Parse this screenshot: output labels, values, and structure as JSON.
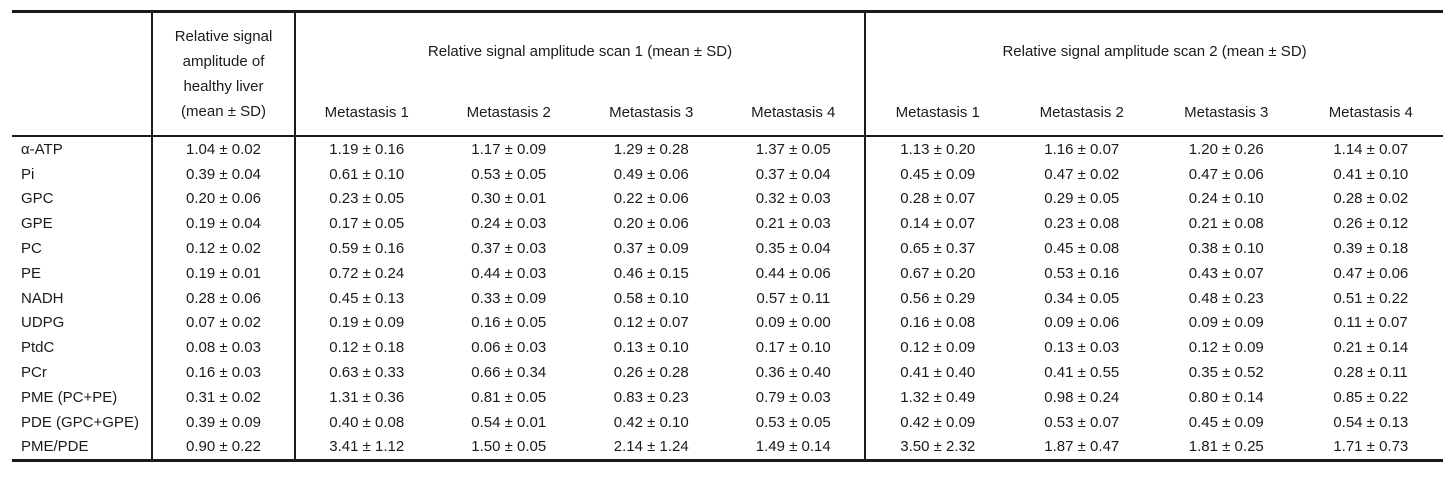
{
  "table": {
    "corner_label": "",
    "healthy_header_lines": [
      "Relative signal",
      "amplitude of",
      "healthy liver",
      "(mean ± SD)"
    ],
    "scan1_header": "Relative signal amplitude scan 1 (mean ± SD)",
    "scan2_header": "Relative signal amplitude scan 2 (mean ± SD)",
    "scan1_metastasis": [
      "Metastasis 1",
      "Metastasis 2",
      "Metastasis 3",
      "Metastasis 4"
    ],
    "scan2_metastasis": [
      "Metastasis 1",
      "Metastasis 2",
      "Metastasis 3",
      "Metastasis 4"
    ],
    "rows": [
      {
        "label": "α-ATP",
        "healthy": "1.04 ± 0.02",
        "scan1": [
          "1.19 ± 0.16",
          "1.17 ± 0.09",
          "1.29 ± 0.28",
          "1.37 ± 0.05"
        ],
        "scan2": [
          "1.13 ± 0.20",
          "1.16 ± 0.07",
          "1.20 ± 0.26",
          "1.14 ± 0.07"
        ]
      },
      {
        "label": "Pi",
        "healthy": "0.39 ± 0.04",
        "scan1": [
          "0.61 ± 0.10",
          "0.53 ± 0.05",
          "0.49 ± 0.06",
          "0.37 ± 0.04"
        ],
        "scan2": [
          "0.45 ± 0.09",
          "0.47 ± 0.02",
          "0.47 ± 0.06",
          "0.41 ± 0.10"
        ]
      },
      {
        "label": "GPC",
        "healthy": "0.20 ± 0.06",
        "scan1": [
          "0.23 ± 0.05",
          "0.30 ± 0.01",
          "0.22 ± 0.06",
          "0.32 ± 0.03"
        ],
        "scan2": [
          "0.28 ± 0.07",
          "0.29 ± 0.05",
          "0.24 ± 0.10",
          "0.28 ± 0.02"
        ]
      },
      {
        "label": "GPE",
        "healthy": "0.19 ± 0.04",
        "scan1": [
          "0.17 ± 0.05",
          "0.24 ± 0.03",
          "0.20 ± 0.06",
          "0.21 ± 0.03"
        ],
        "scan2": [
          "0.14 ± 0.07",
          "0.23 ± 0.08",
          "0.21 ± 0.08",
          "0.26 ± 0.12"
        ]
      },
      {
        "label": "PC",
        "healthy": "0.12 ± 0.02",
        "scan1": [
          "0.59 ± 0.16",
          "0.37 ± 0.03",
          "0.37 ± 0.09",
          "0.35 ± 0.04"
        ],
        "scan2": [
          "0.65 ± 0.37",
          "0.45 ± 0.08",
          "0.38 ± 0.10",
          "0.39 ± 0.18"
        ]
      },
      {
        "label": "PE",
        "healthy": "0.19 ± 0.01",
        "scan1": [
          "0.72 ± 0.24",
          "0.44 ± 0.03",
          "0.46 ± 0.15",
          "0.44 ± 0.06"
        ],
        "scan2": [
          "0.67 ± 0.20",
          "0.53 ± 0.16",
          "0.43 ± 0.07",
          "0.47 ± 0.06"
        ]
      },
      {
        "label": "NADH",
        "healthy": "0.28 ± 0.06",
        "scan1": [
          "0.45 ± 0.13",
          "0.33 ± 0.09",
          "0.58 ± 0.10",
          "0.57 ± 0.11"
        ],
        "scan2": [
          "0.56 ± 0.29",
          "0.34 ± 0.05",
          "0.48 ± 0.23",
          "0.51 ± 0.22"
        ]
      },
      {
        "label": "UDPG",
        "healthy": "0.07 ± 0.02",
        "scan1": [
          "0.19 ± 0.09",
          "0.16 ± 0.05",
          "0.12 ± 0.07",
          "0.09 ± 0.00"
        ],
        "scan2": [
          "0.16 ± 0.08",
          "0.09 ± 0.06",
          "0.09 ± 0.09",
          "0.11 ± 0.07"
        ]
      },
      {
        "label": "PtdC",
        "healthy": "0.08 ± 0.03",
        "scan1": [
          "0.12 ± 0.18",
          "0.06 ± 0.03",
          "0.13 ± 0.10",
          "0.17 ± 0.10"
        ],
        "scan2": [
          "0.12 ± 0.09",
          "0.13 ± 0.03",
          "0.12 ± 0.09",
          "0.21 ± 0.14"
        ]
      },
      {
        "label": "PCr",
        "healthy": "0.16 ± 0.03",
        "scan1": [
          "0.63 ± 0.33",
          "0.66 ± 0.34",
          "0.26 ± 0.28",
          "0.36 ± 0.40"
        ],
        "scan2": [
          "0.41 ± 0.40",
          "0.41 ± 0.55",
          "0.35 ± 0.52",
          "0.28 ± 0.11"
        ]
      },
      {
        "label": "PME (PC+PE)",
        "healthy": "0.31 ± 0.02",
        "scan1": [
          "1.31 ± 0.36",
          "0.81 ± 0.05",
          "0.83 ± 0.23",
          "0.79 ± 0.03"
        ],
        "scan2": [
          "1.32 ± 0.49",
          "0.98 ± 0.24",
          "0.80 ± 0.14",
          "0.85 ± 0.22"
        ]
      },
      {
        "label": "PDE (GPC+GPE)",
        "healthy": "0.39 ± 0.09",
        "scan1": [
          "0.40 ± 0.08",
          "0.54 ± 0.01",
          "0.42 ± 0.10",
          "0.53 ± 0.05"
        ],
        "scan2": [
          "0.42 ± 0.09",
          "0.53 ± 0.07",
          "0.45 ± 0.09",
          "0.54 ± 0.13"
        ]
      },
      {
        "label": "PME/PDE",
        "healthy": "0.90 ± 0.22",
        "scan1": [
          "3.41 ± 1.12",
          "1.50 ± 0.05",
          "2.14 ± 1.24",
          "1.49 ± 0.14"
        ],
        "scan2": [
          "3.50 ± 2.32",
          "1.87 ± 0.47",
          "1.81 ± 0.25",
          "1.71 ± 0.73"
        ]
      }
    ]
  },
  "colors": {
    "border": "#1a1a1a",
    "text": "#1b1b1b",
    "background": "#ffffff"
  }
}
